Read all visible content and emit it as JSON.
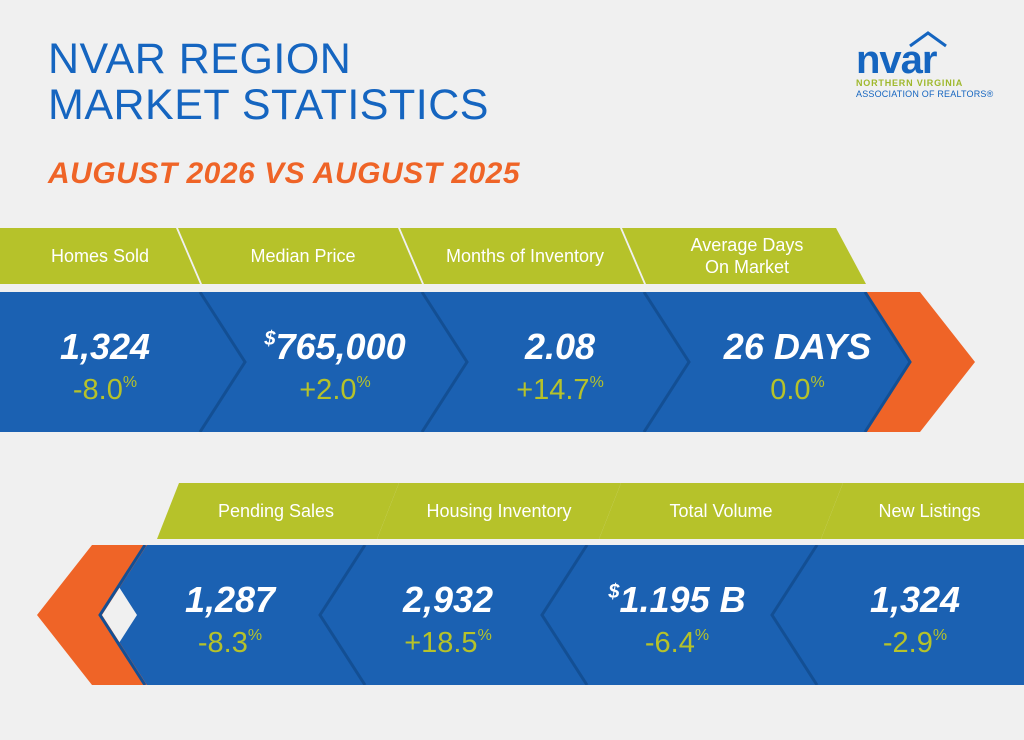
{
  "header": {
    "title_line1": "NVAR REGION",
    "title_line2": "MARKET STATISTICS",
    "subtitle": "AUGUST 2026 VS AUGUST 2025"
  },
  "logo": {
    "word": "nvar",
    "line1": "NORTHERN VIRGINIA",
    "line2": "ASSOCIATION OF REALTORS®"
  },
  "colors": {
    "blue": "#1b61b2",
    "green": "#b6c22a",
    "orange": "#ef6427",
    "background": "#f0f0f0"
  },
  "row1": [
    {
      "label": "Homes Sold",
      "value_prefix": "",
      "value": "1,324",
      "change": "-8.0",
      "change_unit": "%"
    },
    {
      "label": "Median Price",
      "value_prefix": "$",
      "value": "765,000",
      "change": "+2.0",
      "change_unit": "%"
    },
    {
      "label": "Months of Inventory",
      "value_prefix": "",
      "value": "2.08",
      "change": "+14.7",
      "change_unit": "%"
    },
    {
      "label_line1": "Average Days",
      "label_line2": "On Market",
      "value_prefix": "",
      "value": "26 DAYS",
      "change": "0.0",
      "change_unit": "%"
    }
  ],
  "row2": [
    {
      "label": "Pending Sales",
      "value_prefix": "",
      "value": "1,287",
      "change": "-8.3",
      "change_unit": "%"
    },
    {
      "label": "Housing Inventory",
      "value_prefix": "",
      "value": "2,932",
      "change": "+18.5",
      "change_unit": "%"
    },
    {
      "label": "Total Volume",
      "value_prefix": "$",
      "value": "1.195 B",
      "change": "-6.4",
      "change_unit": "%"
    },
    {
      "label": "New Listings",
      "value_prefix": "",
      "value": "1,324",
      "change": "-2.9",
      "change_unit": "%"
    }
  ]
}
